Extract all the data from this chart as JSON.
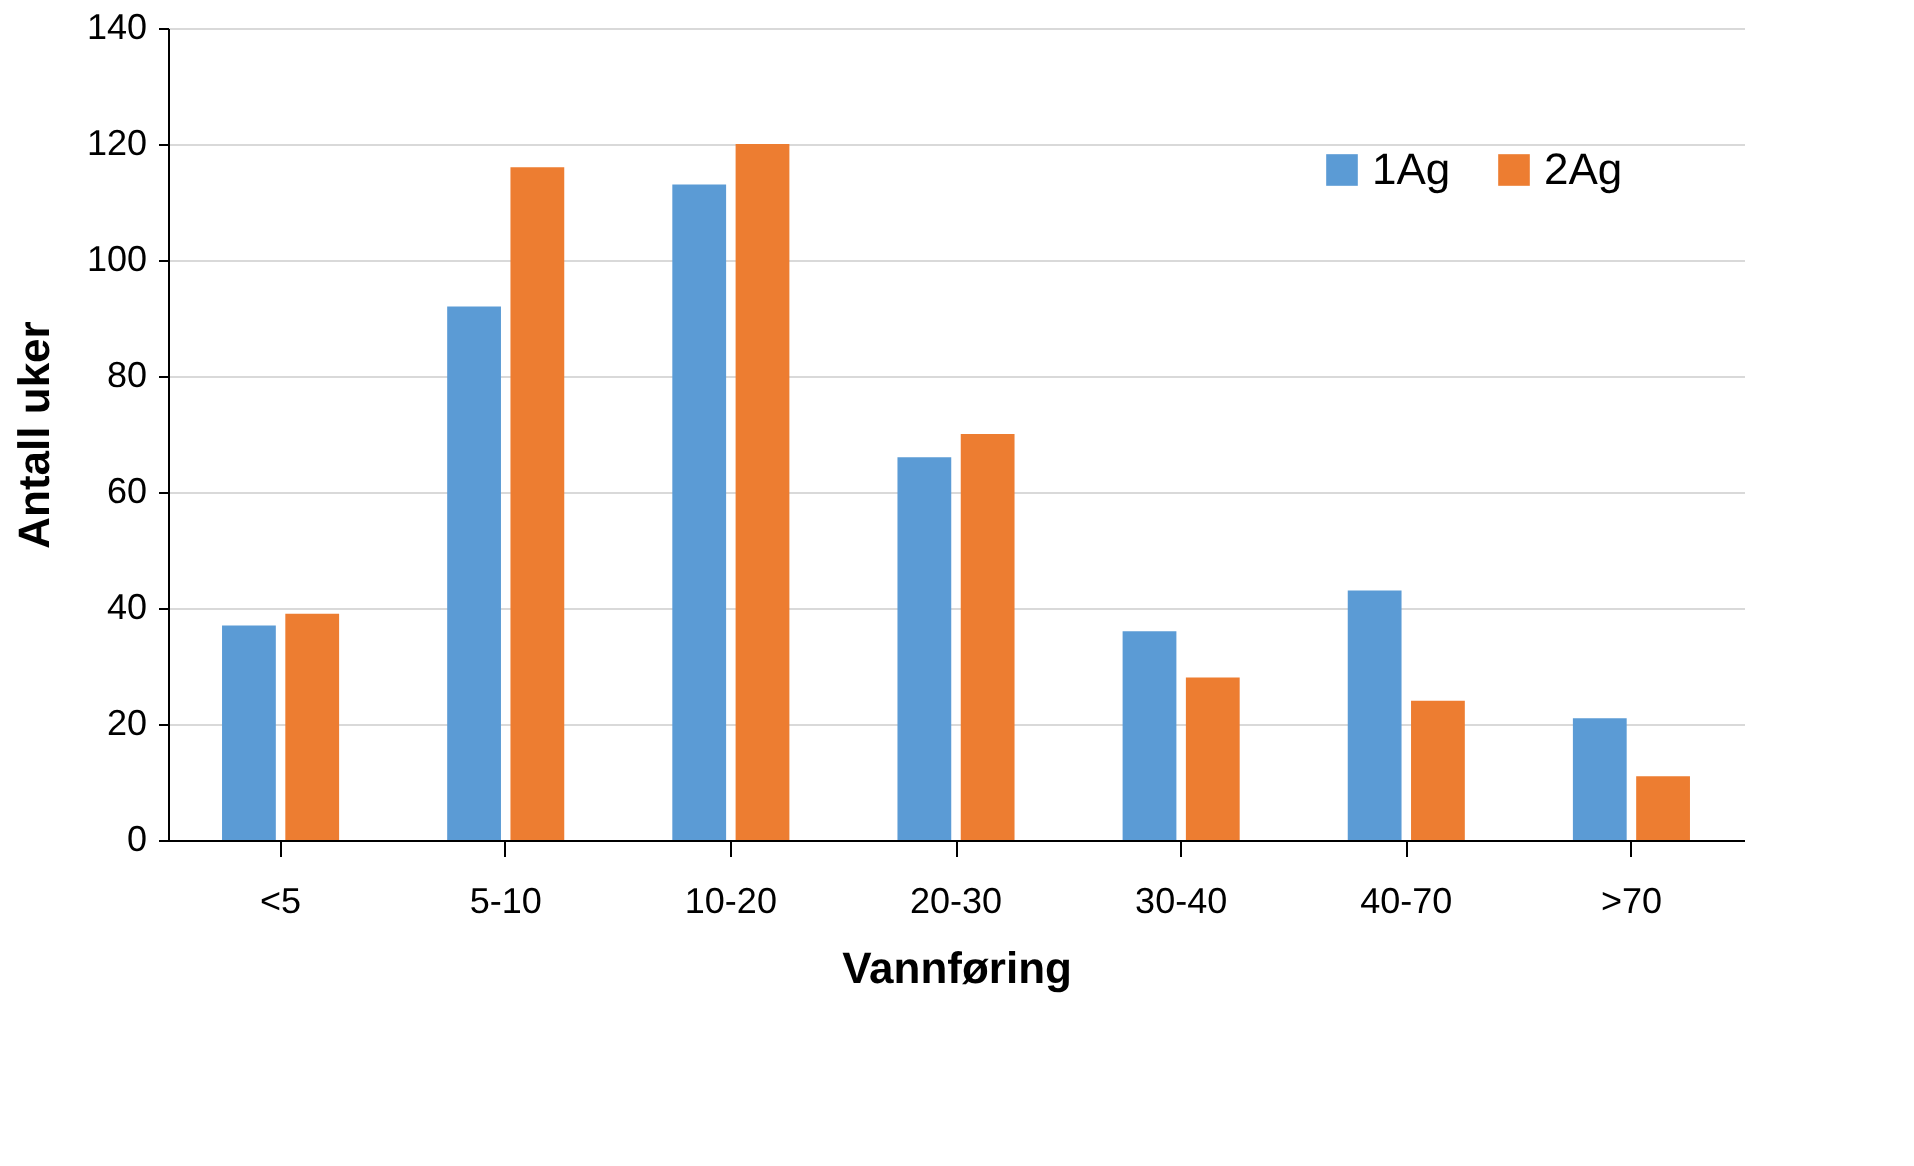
{
  "chart_data": {
    "type": "bar",
    "xlabel": "Vannføring",
    "ylabel": "Antall uker",
    "categories": [
      "<5",
      "5-10",
      "10-20",
      "20-30",
      "30-40",
      "40-70",
      ">70"
    ],
    "series": [
      {
        "name": "1Ag",
        "color": "#5b9bd5",
        "values": [
          37,
          92,
          113,
          66,
          36,
          43,
          21
        ]
      },
      {
        "name": "2Ag",
        "color": "#ed7d31",
        "values": [
          39,
          116,
          120,
          70,
          28,
          24,
          11
        ]
      }
    ],
    "ylim": [
      0,
      140
    ],
    "yticks": [
      0,
      20,
      40,
      60,
      80,
      100,
      120,
      140
    ],
    "grid": "y",
    "legend": "top right"
  }
}
